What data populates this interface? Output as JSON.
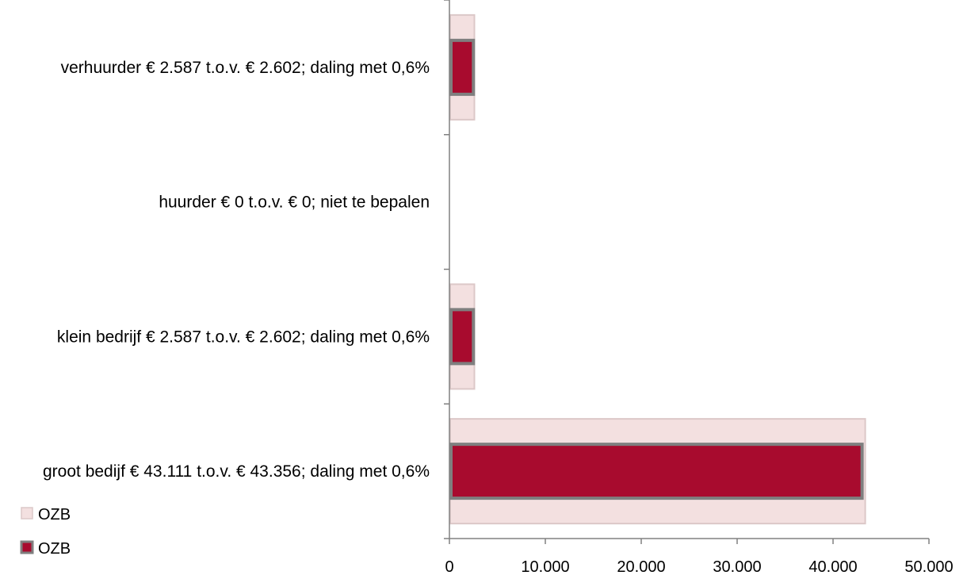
{
  "chart_data": {
    "type": "bar",
    "orientation": "horizontal",
    "categories": [
      "verhuurder € 2.587 t.o.v. € 2.602;  daling met 0,6%",
      "huurder € 0 t.o.v. € 0;  niet te bepalen",
      "klein bedrijf € 2.587 t.o.v. € 2.602; daling met 0,6%",
      "groot bedijf € 43.111 t.o.v. € 43.356; daling met 0,6%"
    ],
    "series": [
      {
        "name": "OZB",
        "values": [
          2602,
          0,
          2602,
          43356
        ],
        "color": "#f3e0e0",
        "border": "#dcc8c8"
      },
      {
        "name": "OZB",
        "values": [
          2587,
          0,
          2587,
          43111
        ],
        "color": "#a80b2e",
        "border": "#7f7f7f"
      }
    ],
    "xlim": [
      0,
      50000
    ],
    "xticks": [
      0,
      10000,
      20000,
      30000,
      40000,
      50000
    ],
    "xtick_labels": [
      "0",
      "10.000",
      "20.000",
      "30.000",
      "40.000",
      "50.000"
    ],
    "grid": false,
    "legend_position": "bottom-left",
    "title": "",
    "xlabel": "",
    "ylabel": ""
  }
}
